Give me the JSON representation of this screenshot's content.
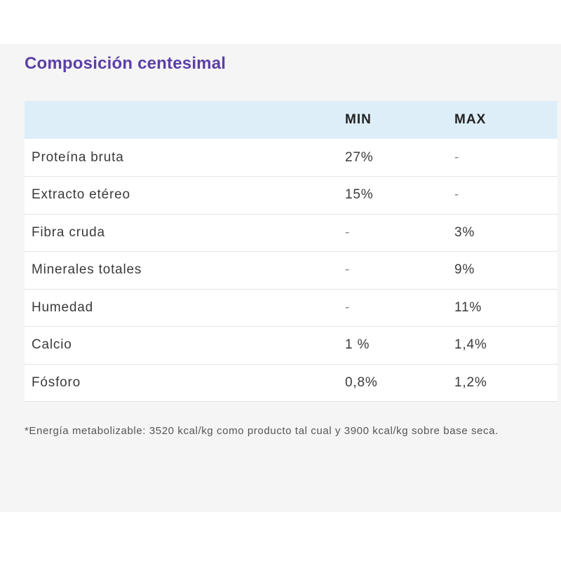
{
  "title": "Composición centesimal",
  "table": {
    "headers": [
      "",
      "MIN",
      "MAX"
    ],
    "rows": [
      {
        "name": "Proteína bruta",
        "min": "27%",
        "max": "-"
      },
      {
        "name": "Extracto etéreo",
        "min": "15%",
        "max": "-"
      },
      {
        "name": "Fibra cruda",
        "min": "-",
        "max": "3%"
      },
      {
        "name": "Minerales totales",
        "min": "-",
        "max": "9%"
      },
      {
        "name": "Humedad",
        "min": "-",
        "max": "11%"
      },
      {
        "name": "Calcio",
        "min": "1 %",
        "max": "1,4%"
      },
      {
        "name": "Fósforo",
        "min": "0,8%",
        "max": "1,2%"
      }
    ]
  },
  "footnote": "*Energía metabolizable: 3520 kcal/kg como producto tal cual y 3900 kcal/kg sobre base seca.",
  "colors": {
    "title": "#5b3fa6",
    "header_bg": "#ddeef8",
    "panel_bg": "#f5f5f5"
  }
}
